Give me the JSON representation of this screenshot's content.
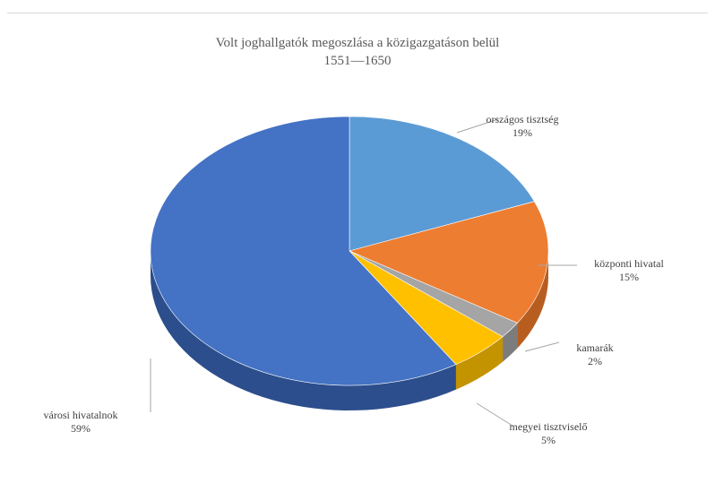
{
  "chart_data": {
    "type": "pie",
    "title": "Volt joghallgatók  megoszlása a közigazgatáson belül",
    "subtitle": "1551—1650",
    "slices": [
      {
        "label": "országos tisztség",
        "value": 19,
        "value_label": "19%",
        "color": "#5b9bd5",
        "side": "#3a76b0"
      },
      {
        "label": "központi hivatal",
        "value": 15,
        "value_label": "15%",
        "color": "#ed7d31",
        "side": "#b85d20"
      },
      {
        "label": "kamarák",
        "value": 2,
        "value_label": "2%",
        "color": "#a5a5a5",
        "side": "#7c7c7c"
      },
      {
        "label": "megyei tisztviselő",
        "value": 5,
        "value_label": "5%",
        "color": "#ffc000",
        "side": "#c49300"
      },
      {
        "label": "városi hivatalnok",
        "value": 59,
        "value_label": "59%",
        "color": "#4472c4",
        "side": "#2c4e8c"
      }
    ],
    "legend": "none",
    "style": "3d-pie"
  }
}
